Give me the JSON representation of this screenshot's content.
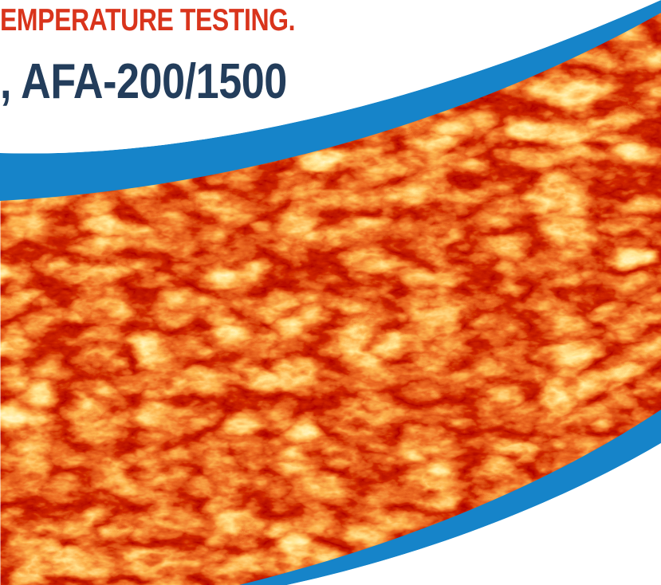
{
  "headline": {
    "line1": "EMPERATURE TESTING.",
    "line2": ", AFA-200/1500"
  },
  "colors": {
    "headline_red": "#d9341c",
    "headline_blue": "#233d5b",
    "swoosh_blue": "#1684c9",
    "background": "#ffffff",
    "fire_dark": "#7a0000",
    "fire_mid": "#d42a00",
    "fire_light": "#ffd24a"
  },
  "banner": {
    "image": "fire-texture-image",
    "decoration": "blue-swoosh-band"
  }
}
